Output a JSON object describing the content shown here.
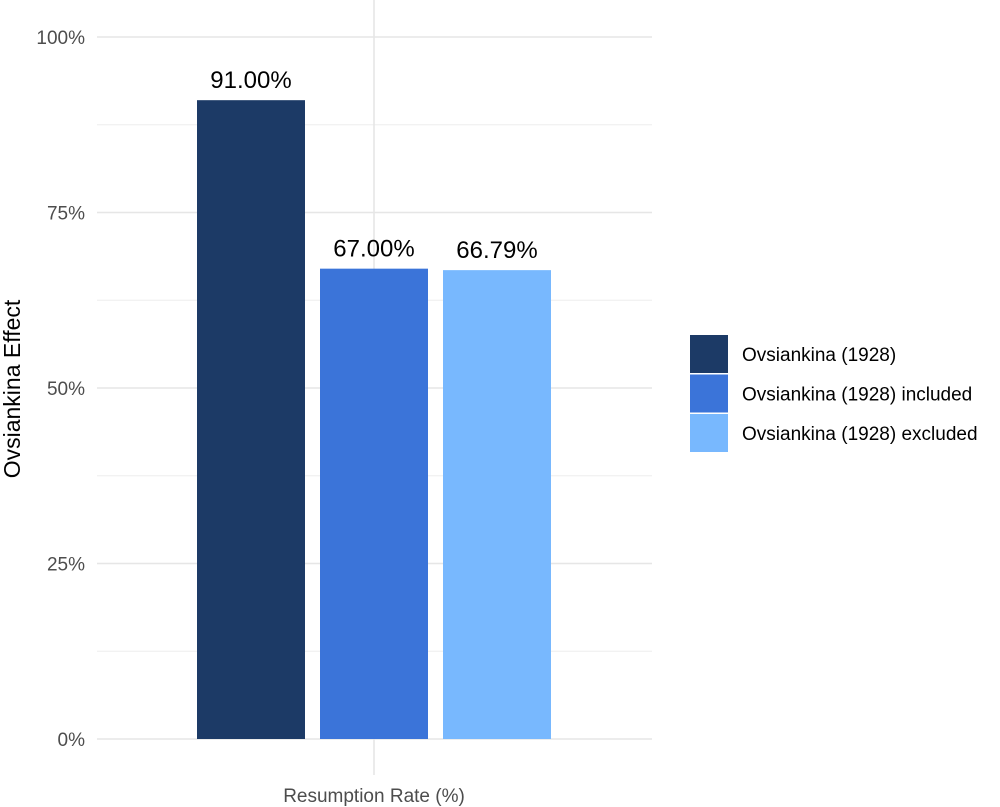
{
  "chart_data": {
    "type": "bar",
    "title": "",
    "xlabel": "Resumption Rate (%)",
    "ylabel": "Ovsiankina Effect",
    "ylim": [
      0,
      100
    ],
    "y_ticks": [
      0,
      25,
      50,
      75,
      100
    ],
    "y_tick_labels": [
      "0%",
      "25%",
      "50%",
      "75%",
      "100%"
    ],
    "grid": true,
    "legend_position": "right",
    "series": [
      {
        "name": "Ovsiankina (1928)",
        "value": 91.0,
        "label": "91.00%",
        "color": "#1c3a66"
      },
      {
        "name": "Ovsiankina (1928) included",
        "value": 67.0,
        "label": "67.00%",
        "color": "#3b74d9"
      },
      {
        "name": "Ovsiankina (1928) excluded",
        "value": 66.79,
        "label": "66.79%",
        "color": "#78b8fe"
      }
    ]
  }
}
